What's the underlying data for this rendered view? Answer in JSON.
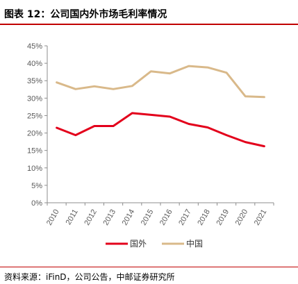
{
  "title": "图表 12：公司国内外市场毛利率情况",
  "source": "资料来源：iFinD，公司公告，中邮证券研究所",
  "chart_data": {
    "type": "line",
    "x": [
      "2010",
      "2011",
      "2012",
      "2013",
      "2014",
      "2015",
      "2016",
      "2017",
      "2018",
      "2019",
      "2020",
      "2021"
    ],
    "series": [
      {
        "name": "国外",
        "color": "#e3001b",
        "values": [
          21.5,
          19.4,
          22.0,
          22.0,
          25.7,
          25.2,
          24.7,
          22.6,
          21.6,
          19.4,
          17.4,
          16.2
        ]
      },
      {
        "name": "中国",
        "color": "#d9b98a",
        "values": [
          34.5,
          32.6,
          33.4,
          32.6,
          33.5,
          37.7,
          37.1,
          39.2,
          38.8,
          37.3,
          30.5,
          30.3
        ]
      }
    ],
    "yticks": [
      "0%",
      "5%",
      "10%",
      "15%",
      "20%",
      "25%",
      "30%",
      "35%",
      "40%",
      "45%"
    ],
    "ylim": [
      0,
      45
    ],
    "legend": "bottom",
    "grid": false
  }
}
